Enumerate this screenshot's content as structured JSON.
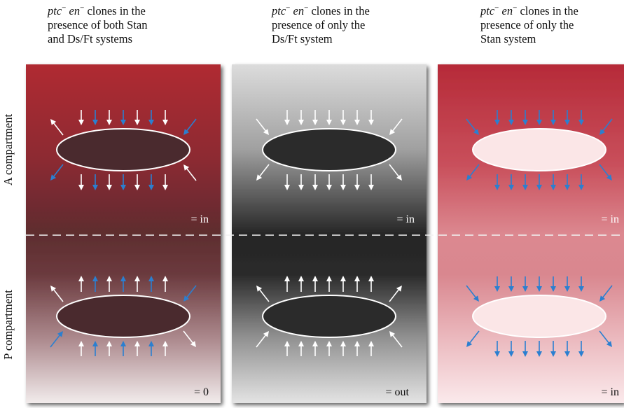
{
  "headings": [
    {
      "pre": "ptc",
      "sup1": "−",
      "mid": " en",
      "sup2": "−",
      "post": " clones in the",
      "line2": "presence of both Stan",
      "line3": "and Ds/Ft systems"
    },
    {
      "pre": "ptc",
      "sup1": "−",
      "mid": " en",
      "sup2": "−",
      "post": " clones in the",
      "line2": "presence of only the",
      "line3": "Ds/Ft system"
    },
    {
      "pre": "ptc",
      "sup1": "−",
      "mid": " en",
      "sup2": "−",
      "post": " clones in the",
      "line2": "presence of only the",
      "line3": "Stan system"
    }
  ],
  "row_labels": {
    "top": "A compartment",
    "bottom": "P compartment"
  },
  "panel_labels": {
    "col1": {
      "top": "= in",
      "bottom": "= 0"
    },
    "col2": {
      "top": "= in",
      "bottom": "= out"
    },
    "col3": {
      "top": "= in",
      "bottom": "= in"
    }
  },
  "colors": {
    "red": "#b42a36",
    "blue_arrow": "#2b7fd0",
    "white_arrow": "#ffffff",
    "dark_clone": "#4a2a2e",
    "gray_clone": "#2b2b2b",
    "pink_clone": "#fbe6e7"
  }
}
